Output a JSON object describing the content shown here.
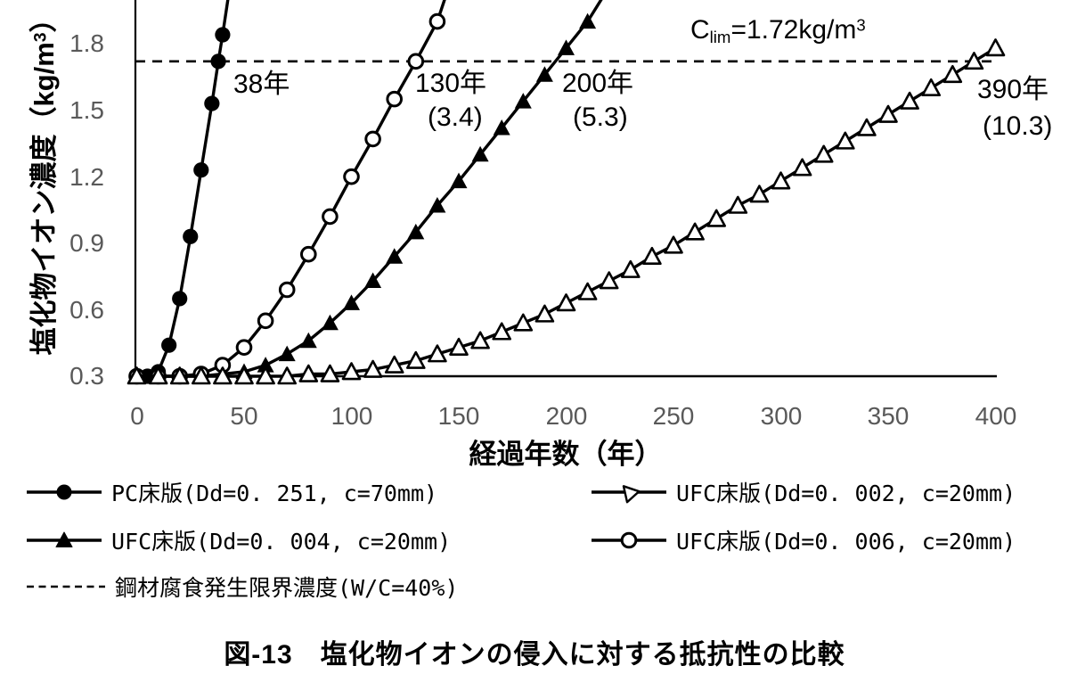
{
  "figure": {
    "caption": "図-13　塩化物イオンの侵入に対する抵抗性の比較"
  },
  "chart_data": {
    "type": "line",
    "xlabel": "経過年数（年）",
    "ylabel": "塩化物イオン濃度（kg/m³）",
    "ylabel_parts": {
      "main": "塩化物イオン濃度（kg/m",
      "sup": "3",
      "close": "）"
    },
    "x_ticks": [
      "0",
      "50",
      "100",
      "150",
      "200",
      "250",
      "300",
      "350",
      "400"
    ],
    "y_ticks": [
      "1.8",
      "1.5",
      "1.2",
      "0.9",
      "0.6",
      "0.3"
    ],
    "axis_range": {
      "x": [
        0,
        400
      ],
      "y_bottom": 0.3,
      "y_top_visible": 2.0
    },
    "grid": false,
    "legend_position": "below",
    "limit_line": {
      "value": 1.72,
      "label": "Clim=1.72kg/m³",
      "label_parts": {
        "c": "C",
        "sub": "lim",
        "rest": "=1.72kg/m",
        "sup": "3"
      },
      "legend_label": "鋼材腐食発生限界濃度(W/C=40%)"
    },
    "series": [
      {
        "id": "pc",
        "name": "PC床版(Dd=0. 251, c=70mm)",
        "marker": "circle-filled",
        "x": [
          0,
          5,
          10,
          15,
          20,
          25,
          30,
          35,
          38,
          40
        ],
        "y": [
          0.3,
          0.3,
          0.32,
          0.44,
          0.65,
          0.93,
          1.23,
          1.53,
          1.72,
          1.84
        ],
        "ext": [
          [
            43.4,
            2.06
          ]
        ],
        "annotation": {
          "line1": "38年",
          "line2": ""
        }
      },
      {
        "id": "ufc-dd004",
        "name": "UFC床版(Dd=0. 004, c=20mm)",
        "marker": "triangle-filled",
        "x": [
          0,
          10,
          20,
          30,
          40,
          50,
          60,
          70,
          80,
          90,
          100,
          110,
          120,
          130,
          140,
          150,
          160,
          170,
          180,
          190,
          200,
          210
        ],
        "y": [
          0.3,
          0.3,
          0.3,
          0.3,
          0.31,
          0.32,
          0.35,
          0.4,
          0.46,
          0.54,
          0.63,
          0.73,
          0.84,
          0.95,
          1.07,
          1.18,
          1.3,
          1.42,
          1.54,
          1.66,
          1.78,
          1.9
        ],
        "ext": [
          [
            219,
            2.04
          ]
        ],
        "annotation": {
          "line1": "200年",
          "line2": "(5.3)"
        }
      },
      {
        "id": "ufc-dd006",
        "name": "UFC床版(Dd=0. 006, c=20mm)",
        "marker": "circle-open",
        "x": [
          0,
          10,
          20,
          30,
          40,
          50,
          60,
          70,
          80,
          90,
          100,
          110,
          120,
          130,
          140
        ],
        "y": [
          0.3,
          0.3,
          0.3,
          0.31,
          0.35,
          0.43,
          0.55,
          0.69,
          0.85,
          1.02,
          1.2,
          1.37,
          1.55,
          1.72,
          1.9
        ],
        "ext": [
          [
            144.5,
            2.03
          ]
        ],
        "annotation": {
          "line1": "130年",
          "line2": "(3.4)"
        }
      },
      {
        "id": "ufc-dd002",
        "name": "UFC床版(Dd=0. 002, c=20mm)",
        "marker": "triangle-open",
        "x": [
          0,
          10,
          20,
          30,
          40,
          50,
          60,
          70,
          80,
          90,
          100,
          110,
          120,
          130,
          140,
          150,
          160,
          170,
          180,
          190,
          200,
          210,
          220,
          230,
          240,
          250,
          260,
          270,
          280,
          290,
          300,
          310,
          320,
          330,
          340,
          350,
          360,
          370,
          380,
          390,
          400
        ],
        "y": [
          0.3,
          0.3,
          0.3,
          0.3,
          0.3,
          0.3,
          0.3,
          0.3,
          0.31,
          0.31,
          0.32,
          0.33,
          0.35,
          0.37,
          0.4,
          0.43,
          0.46,
          0.5,
          0.54,
          0.58,
          0.63,
          0.68,
          0.73,
          0.78,
          0.84,
          0.89,
          0.95,
          1.01,
          1.07,
          1.12,
          1.18,
          1.24,
          1.3,
          1.36,
          1.42,
          1.48,
          1.54,
          1.6,
          1.66,
          1.72,
          1.78
        ],
        "ext": [],
        "annotation": {
          "line1": "390年",
          "line2": "(10.3)"
        }
      }
    ],
    "colors": {
      "line": "#000000",
      "tick_label": "#595959",
      "background": "#ffffff"
    }
  }
}
